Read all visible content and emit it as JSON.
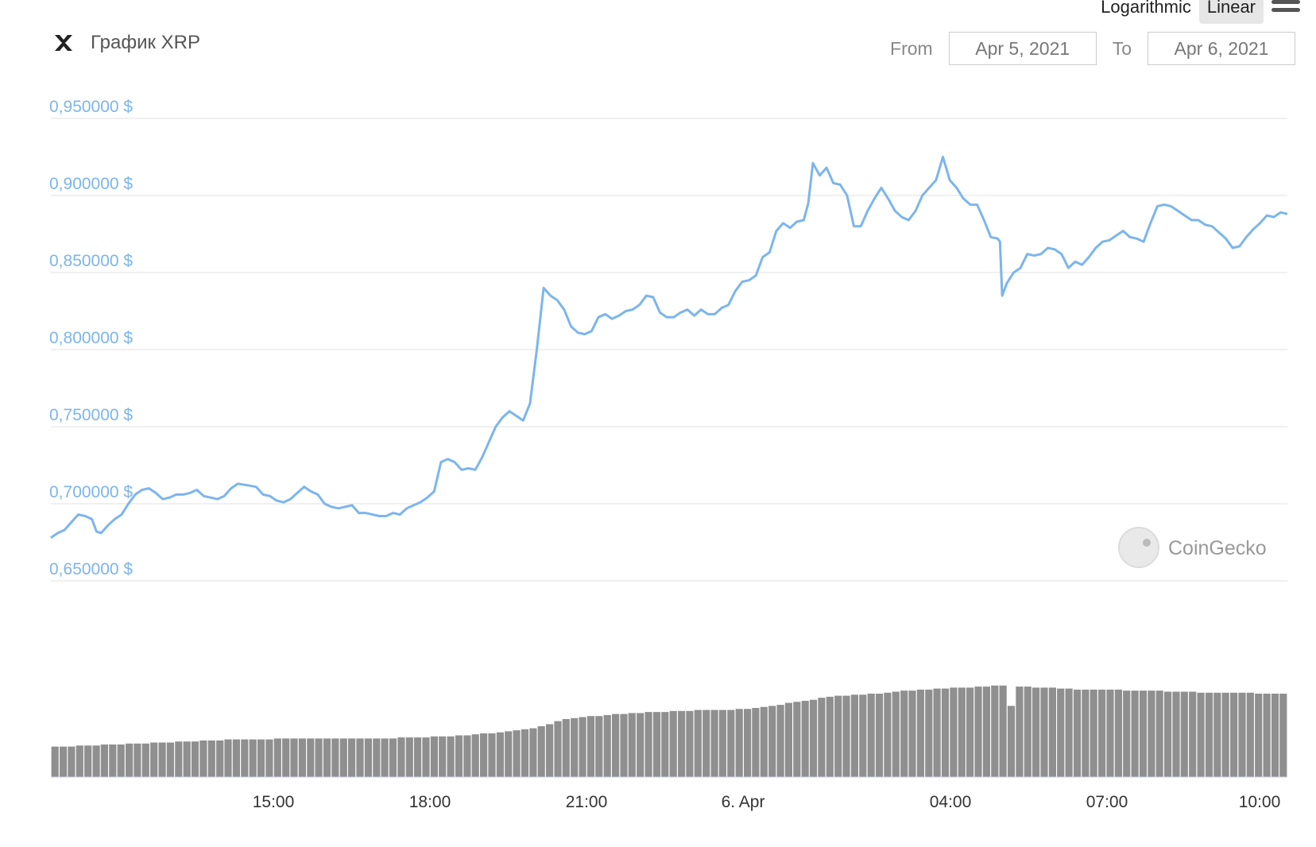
{
  "header": {
    "title": "График XRP",
    "coin_icon": "xrp-logo-icon"
  },
  "toggles": {
    "logarithmic": "Logarithmic",
    "linear": "Linear",
    "active": "linear"
  },
  "range": {
    "from_label": "From",
    "from_value": "Apr 5, 2021",
    "to_label": "To",
    "to_value": "Apr 6, 2021"
  },
  "watermark": {
    "text": "CoinGecko"
  },
  "colors": {
    "price_line": "#7cb5ec",
    "volume_bar": "#8f8f8f",
    "grid": "#e0e0e0"
  },
  "chart_data": {
    "type": "line",
    "y_scale": "linear",
    "grid": true,
    "ylim": [
      0.65,
      0.95
    ],
    "y_ticks": [
      {
        "value": 0.95,
        "label": "0,950000 $"
      },
      {
        "value": 0.9,
        "label": "0,900000 $"
      },
      {
        "value": 0.85,
        "label": "0,850000 $"
      },
      {
        "value": 0.8,
        "label": "0,800000 $"
      },
      {
        "value": 0.75,
        "label": "0,750000 $"
      },
      {
        "value": 0.7,
        "label": "0,700000 $"
      },
      {
        "value": 0.65,
        "label": "0,650000 $"
      }
    ],
    "x_range_hours": [
      0,
      23.7
    ],
    "x_ticks": [
      {
        "hour": 4.25,
        "label": "15:00"
      },
      {
        "hour": 7.25,
        "label": "18:00"
      },
      {
        "hour": 10.25,
        "label": "21:00"
      },
      {
        "hour": 13.25,
        "label": "6. Apr"
      },
      {
        "hour": 17.25,
        "label": "04:00"
      },
      {
        "hour": 20.25,
        "label": "07:00"
      },
      {
        "hour": 23.2,
        "label": "10:00"
      }
    ],
    "series": [
      {
        "type": "line",
        "points": [
          [
            0.0,
            0.678
          ],
          [
            0.15,
            0.681
          ],
          [
            0.3,
            0.683
          ],
          [
            0.45,
            0.688
          ],
          [
            0.6,
            0.693
          ],
          [
            0.75,
            0.692
          ],
          [
            0.9,
            0.69
          ],
          [
            1.0,
            0.682
          ],
          [
            1.1,
            0.681
          ],
          [
            1.25,
            0.686
          ],
          [
            1.4,
            0.69
          ],
          [
            1.55,
            0.693
          ],
          [
            1.7,
            0.7
          ],
          [
            1.85,
            0.706
          ],
          [
            2.0,
            0.709
          ],
          [
            2.15,
            0.71
          ],
          [
            2.3,
            0.707
          ],
          [
            2.45,
            0.703
          ],
          [
            2.6,
            0.704
          ],
          [
            2.75,
            0.706
          ],
          [
            2.9,
            0.706
          ],
          [
            3.05,
            0.707
          ],
          [
            3.2,
            0.709
          ],
          [
            3.35,
            0.705
          ],
          [
            3.5,
            0.704
          ],
          [
            3.65,
            0.703
          ],
          [
            3.8,
            0.705
          ],
          [
            3.95,
            0.71
          ],
          [
            4.1,
            0.713
          ],
          [
            4.3,
            0.712
          ],
          [
            4.5,
            0.711
          ],
          [
            4.65,
            0.706
          ],
          [
            4.8,
            0.705
          ],
          [
            4.95,
            0.702
          ],
          [
            5.1,
            0.701
          ],
          [
            5.25,
            0.703
          ],
          [
            5.4,
            0.707
          ],
          [
            5.55,
            0.711
          ],
          [
            5.7,
            0.708
          ],
          [
            5.85,
            0.706
          ],
          [
            6.0,
            0.7
          ],
          [
            6.15,
            0.698
          ],
          [
            6.3,
            0.697
          ],
          [
            6.45,
            0.698
          ],
          [
            6.6,
            0.699
          ],
          [
            6.75,
            0.694
          ],
          [
            6.9,
            0.694
          ],
          [
            7.05,
            0.693
          ],
          [
            7.2,
            0.692
          ],
          [
            7.35,
            0.692
          ],
          [
            7.5,
            0.694
          ],
          [
            7.65,
            0.693
          ],
          [
            7.8,
            0.697
          ],
          [
            7.95,
            0.699
          ],
          [
            8.1,
            0.701
          ],
          [
            8.25,
            0.704
          ],
          [
            8.4,
            0.708
          ],
          [
            8.55,
            0.727
          ],
          [
            8.7,
            0.729
          ],
          [
            8.85,
            0.727
          ],
          [
            9.0,
            0.722
          ],
          [
            9.15,
            0.723
          ],
          [
            9.3,
            0.722
          ],
          [
            9.45,
            0.73
          ],
          [
            9.6,
            0.74
          ],
          [
            9.75,
            0.75
          ],
          [
            9.9,
            0.756
          ],
          [
            10.05,
            0.76
          ],
          [
            10.2,
            0.757
          ],
          [
            10.35,
            0.754
          ],
          [
            10.5,
            0.765
          ],
          [
            10.65,
            0.8
          ],
          [
            10.8,
            0.84
          ],
          [
            10.95,
            0.835
          ],
          [
            11.1,
            0.832
          ],
          [
            11.25,
            0.826
          ],
          [
            11.4,
            0.815
          ],
          [
            11.55,
            0.811
          ],
          [
            11.7,
            0.81
          ],
          [
            11.85,
            0.812
          ],
          [
            12.0,
            0.821
          ],
          [
            12.15,
            0.823
          ],
          [
            12.3,
            0.82
          ],
          [
            12.45,
            0.822
          ],
          [
            12.6,
            0.825
          ],
          [
            12.75,
            0.826
          ],
          [
            12.9,
            0.829
          ],
          [
            13.05,
            0.835
          ],
          [
            13.2,
            0.834
          ],
          [
            13.35,
            0.824
          ],
          [
            13.5,
            0.821
          ],
          [
            13.65,
            0.821
          ],
          [
            13.8,
            0.824
          ],
          [
            13.95,
            0.826
          ],
          [
            14.1,
            0.822
          ],
          [
            14.25,
            0.826
          ],
          [
            14.4,
            0.823
          ],
          [
            14.55,
            0.823
          ],
          [
            14.7,
            0.827
          ],
          [
            14.85,
            0.829
          ],
          [
            15.0,
            0.838
          ],
          [
            15.15,
            0.844
          ],
          [
            15.3,
            0.845
          ],
          [
            15.45,
            0.848
          ],
          [
            15.6,
            0.86
          ],
          [
            15.75,
            0.863
          ],
          [
            15.9,
            0.877
          ],
          [
            16.05,
            0.882
          ],
          [
            16.2,
            0.879
          ],
          [
            16.35,
            0.883
          ],
          [
            16.5,
            0.884
          ],
          [
            16.6,
            0.895
          ],
          [
            16.7,
            0.921
          ],
          [
            16.85,
            0.913
          ],
          [
            17.0,
            0.918
          ],
          [
            17.15,
            0.908
          ],
          [
            17.3,
            0.907
          ],
          [
            17.45,
            0.9
          ],
          [
            17.6,
            0.88
          ],
          [
            17.75,
            0.88
          ],
          [
            17.9,
            0.89
          ],
          [
            18.05,
            0.898
          ],
          [
            18.2,
            0.905
          ],
          [
            18.35,
            0.898
          ],
          [
            18.5,
            0.89
          ],
          [
            18.65,
            0.886
          ],
          [
            18.8,
            0.884
          ],
          [
            18.95,
            0.89
          ],
          [
            19.1,
            0.9
          ],
          [
            19.25,
            0.905
          ],
          [
            19.4,
            0.91
          ],
          [
            19.55,
            0.925
          ],
          [
            19.7,
            0.91
          ],
          [
            19.85,
            0.905
          ],
          [
            20.0,
            0.898
          ],
          [
            20.15,
            0.894
          ],
          [
            20.3,
            0.894
          ],
          [
            20.45,
            0.884
          ],
          [
            20.6,
            0.873
          ],
          [
            20.75,
            0.872
          ],
          [
            20.8,
            0.87
          ],
          [
            20.85,
            0.835
          ],
          [
            20.95,
            0.843
          ],
          [
            21.1,
            0.85
          ],
          [
            21.25,
            0.853
          ],
          [
            21.4,
            0.862
          ],
          [
            21.55,
            0.861
          ],
          [
            21.7,
            0.862
          ],
          [
            21.85,
            0.866
          ],
          [
            22.0,
            0.865
          ],
          [
            22.15,
            0.862
          ],
          [
            22.3,
            0.853
          ],
          [
            22.45,
            0.857
          ],
          [
            22.6,
            0.855
          ],
          [
            22.75,
            0.86
          ],
          [
            22.9,
            0.866
          ],
          [
            23.05,
            0.87
          ],
          [
            23.2,
            0.871
          ],
          [
            23.35,
            0.874
          ],
          [
            23.5,
            0.877
          ],
          [
            23.65,
            0.873
          ],
          [
            23.8,
            0.872
          ],
          [
            23.95,
            0.87
          ],
          [
            24.1,
            0.882
          ],
          [
            24.25,
            0.893
          ],
          [
            24.4,
            0.894
          ],
          [
            24.55,
            0.893
          ],
          [
            24.7,
            0.89
          ],
          [
            24.85,
            0.887
          ],
          [
            25.0,
            0.884
          ],
          [
            25.15,
            0.884
          ],
          [
            25.3,
            0.881
          ],
          [
            25.45,
            0.88
          ],
          [
            25.6,
            0.876
          ],
          [
            25.75,
            0.872
          ],
          [
            25.9,
            0.866
          ],
          [
            26.05,
            0.867
          ],
          [
            26.2,
            0.873
          ],
          [
            26.35,
            0.878
          ],
          [
            26.5,
            0.882
          ],
          [
            26.65,
            0.887
          ],
          [
            26.8,
            0.886
          ],
          [
            26.95,
            0.889
          ],
          [
            27.1,
            0.888
          ]
        ]
      },
      {
        "type": "bar",
        "name": "Volume",
        "values_relative": [
          0.3,
          0.3,
          0.3,
          0.31,
          0.31,
          0.31,
          0.32,
          0.32,
          0.32,
          0.33,
          0.33,
          0.33,
          0.34,
          0.34,
          0.34,
          0.35,
          0.35,
          0.35,
          0.36,
          0.36,
          0.36,
          0.37,
          0.37,
          0.37,
          0.37,
          0.37,
          0.37,
          0.38,
          0.38,
          0.38,
          0.38,
          0.38,
          0.38,
          0.38,
          0.38,
          0.38,
          0.38,
          0.38,
          0.38,
          0.38,
          0.38,
          0.38,
          0.39,
          0.39,
          0.39,
          0.39,
          0.4,
          0.4,
          0.4,
          0.41,
          0.41,
          0.42,
          0.43,
          0.43,
          0.44,
          0.45,
          0.46,
          0.47,
          0.48,
          0.5,
          0.52,
          0.55,
          0.57,
          0.58,
          0.59,
          0.6,
          0.6,
          0.61,
          0.62,
          0.62,
          0.63,
          0.63,
          0.64,
          0.64,
          0.64,
          0.65,
          0.65,
          0.65,
          0.66,
          0.66,
          0.66,
          0.66,
          0.66,
          0.67,
          0.67,
          0.68,
          0.69,
          0.7,
          0.71,
          0.73,
          0.74,
          0.75,
          0.76,
          0.78,
          0.79,
          0.8,
          0.8,
          0.81,
          0.81,
          0.82,
          0.82,
          0.83,
          0.84,
          0.85,
          0.85,
          0.86,
          0.86,
          0.87,
          0.87,
          0.88,
          0.88,
          0.88,
          0.89,
          0.89,
          0.9,
          0.9,
          0.7,
          0.89,
          0.89,
          0.88,
          0.88,
          0.88,
          0.87,
          0.87,
          0.86,
          0.86,
          0.86,
          0.86,
          0.86,
          0.86,
          0.85,
          0.85,
          0.85,
          0.85,
          0.85,
          0.84,
          0.84,
          0.84,
          0.84,
          0.83,
          0.83,
          0.83,
          0.83,
          0.83,
          0.83,
          0.83,
          0.82,
          0.82,
          0.82,
          0.82
        ]
      }
    ]
  }
}
